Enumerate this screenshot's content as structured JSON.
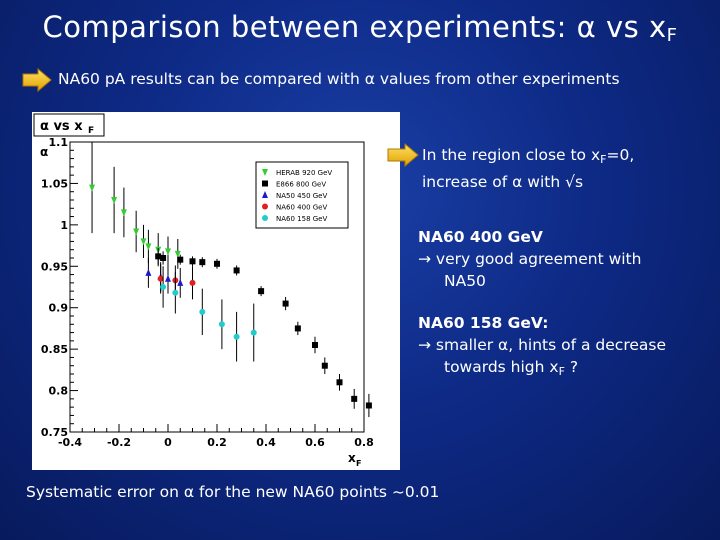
{
  "slide": {
    "title_main": "Comparison between experiments: α vs x",
    "title_sub": "F",
    "subtitle": "NA60 pA results can be compared with α values from other experiments",
    "note1_line1": "In the region close to x",
    "note1_sub": "F",
    "note1_line1_end": "=0,",
    "note1_line2": "increase of α with √s",
    "section1_title": "NA60 400 GeV",
    "section1_line1": "→ very good agreement with",
    "section1_line2": "NA50",
    "section2_title": "NA60 158 GeV:",
    "section2_line1": "→ smaller α, hints of a decrease",
    "section2_line2_start": "towards high x",
    "section2_sub": "F",
    "section2_line2_end": " ?",
    "footer": "Systematic error on α for the new NA60 points ~0.01"
  },
  "colors": {
    "background": "#0e2a86",
    "HERAB": "#33cc33",
    "E866": "#000000",
    "NA50": "#1a1acc",
    "NA60_400": "#e02020",
    "NA60_158": "#22cccc"
  },
  "chart_data": {
    "type": "scatter",
    "title": "α vs x",
    "title_sub": "F",
    "xlabel": "x",
    "xlabel_sub": "F",
    "ylabel": "α",
    "xlim": [
      -0.4,
      0.8
    ],
    "ylim": [
      0.75,
      1.1
    ],
    "xticks": [
      -0.4,
      -0.2,
      0,
      0.2,
      0.4,
      0.6,
      0.8
    ],
    "xtick_labels": [
      "-0.4",
      "-0.2",
      "0",
      "0.2",
      "0.4",
      "0.6",
      "0.8"
    ],
    "yticks": [
      0.75,
      0.8,
      0.85,
      0.9,
      0.95,
      1,
      1.05,
      1.1
    ],
    "ytick_labels": [
      "0.75",
      "0.8",
      "0.85",
      "0.9",
      "0.95",
      "1",
      "1.05",
      "1.1"
    ],
    "legend_position": "top-right",
    "series": [
      {
        "name": "HERAB 920 GeV",
        "marker": "triangle-down",
        "color": "#33cc33",
        "x": [
          -0.31,
          -0.22,
          -0.18,
          -0.13,
          -0.1,
          -0.08,
          -0.04,
          0.0,
          0.04
        ],
        "y": [
          1.045,
          1.03,
          1.015,
          0.992,
          0.98,
          0.974,
          0.97,
          0.968,
          0.965
        ],
        "err": [
          0.055,
          0.04,
          0.03,
          0.025,
          0.02,
          0.02,
          0.02,
          0.018,
          0.018
        ]
      },
      {
        "name": "E866 800 GeV",
        "marker": "square",
        "color": "#000000",
        "x": [
          -0.04,
          -0.02,
          0.05,
          0.1,
          0.14,
          0.2,
          0.28,
          0.38,
          0.48,
          0.53,
          0.6,
          0.64,
          0.7,
          0.76,
          0.82
        ],
        "y": [
          0.962,
          0.96,
          0.958,
          0.956,
          0.955,
          0.953,
          0.945,
          0.92,
          0.905,
          0.875,
          0.855,
          0.83,
          0.81,
          0.79,
          0.782
        ],
        "err": [
          0.01,
          0.008,
          0.006,
          0.006,
          0.006,
          0.006,
          0.006,
          0.006,
          0.008,
          0.008,
          0.01,
          0.01,
          0.01,
          0.012,
          0.014
        ]
      },
      {
        "name": "NA50 450 GeV",
        "marker": "triangle-up",
        "color": "#1a1acc",
        "x": [
          -0.08,
          -0.03,
          0.0,
          0.05
        ],
        "y": [
          0.942,
          0.937,
          0.935,
          0.93
        ],
        "err": [
          0.018,
          0.018,
          0.018,
          0.018
        ]
      },
      {
        "name": "NA60 400 GeV",
        "marker": "circle",
        "color": "#e02020",
        "x": [
          -0.03,
          0.03,
          0.1
        ],
        "y": [
          0.935,
          0.933,
          0.93
        ],
        "err": [
          0.018,
          0.018,
          0.02
        ]
      },
      {
        "name": "NA60 158 GeV",
        "marker": "circle",
        "color": "#22cccc",
        "x": [
          -0.02,
          0.03,
          0.14,
          0.22,
          0.28,
          0.35
        ],
        "y": [
          0.925,
          0.918,
          0.895,
          0.88,
          0.865,
          0.87
        ],
        "err": [
          0.025,
          0.025,
          0.028,
          0.03,
          0.03,
          0.035
        ]
      }
    ]
  }
}
